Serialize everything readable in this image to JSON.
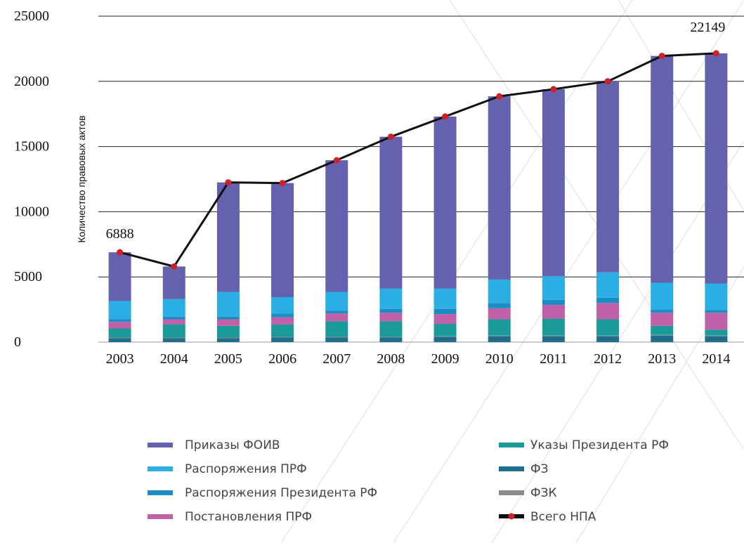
{
  "chart_data": {
    "type": "bar",
    "ylabel": "Количество правовых актов",
    "categories": [
      "2003",
      "2004",
      "2005",
      "2006",
      "2007",
      "2008",
      "2009",
      "2010",
      "2011",
      "2012",
      "2013",
      "2014"
    ],
    "stacked": true,
    "series": [
      {
        "name": "Приказы ФОИВ",
        "color": "#6462ae",
        "values": [
          3738,
          2500,
          8400,
          8750,
          10100,
          11650,
          13200,
          14050,
          14350,
          14650,
          17400,
          17649
        ]
      },
      {
        "name": "Распоряжения ПРФ",
        "color": "#2aaee4",
        "values": [
          1400,
          1350,
          1900,
          1250,
          1450,
          1550,
          1550,
          1800,
          1800,
          1950,
          2050,
          2050
        ]
      },
      {
        "name": "Распоряжения Президента РФ",
        "color": "#1b8cc4",
        "values": [
          200,
          200,
          200,
          300,
          200,
          300,
          400,
          400,
          400,
          400,
          250,
          200
        ]
      },
      {
        "name": "Постановления ПРФ",
        "color": "#c060a8",
        "values": [
          500,
          400,
          500,
          550,
          600,
          650,
          750,
          850,
          1050,
          1250,
          1000,
          1300
        ]
      },
      {
        "name": "Указы Президента РФ",
        "color": "#1a9a9a",
        "values": [
          700,
          1000,
          900,
          950,
          1200,
          1200,
          950,
          1250,
          1300,
          1250,
          700,
          450
        ]
      },
      {
        "name": "ФЗ",
        "color": "#1f6e8c",
        "values": [
          300,
          300,
          300,
          350,
          350,
          350,
          400,
          450,
          450,
          450,
          500,
          450
        ]
      },
      {
        "name": "ФЗК",
        "color": "#8a8a8a",
        "values": [
          50,
          50,
          50,
          50,
          50,
          50,
          50,
          50,
          50,
          50,
          50,
          50
        ]
      },
      {
        "name": "Всего НПА",
        "color": "#111111",
        "marker_color": "#d0202a",
        "type": "line",
        "values": [
          6888,
          5800,
          12250,
          12200,
          13950,
          15750,
          17300,
          18850,
          19400,
          20000,
          21950,
          22149
        ],
        "value_labels": [
          "6888",
          null,
          null,
          null,
          null,
          null,
          null,
          null,
          null,
          null,
          null,
          "22149"
        ]
      }
    ],
    "ylim": [
      0,
      25000
    ],
    "yticks": [
      0,
      5000,
      10000,
      15000,
      20000,
      25000
    ],
    "grid": true
  }
}
